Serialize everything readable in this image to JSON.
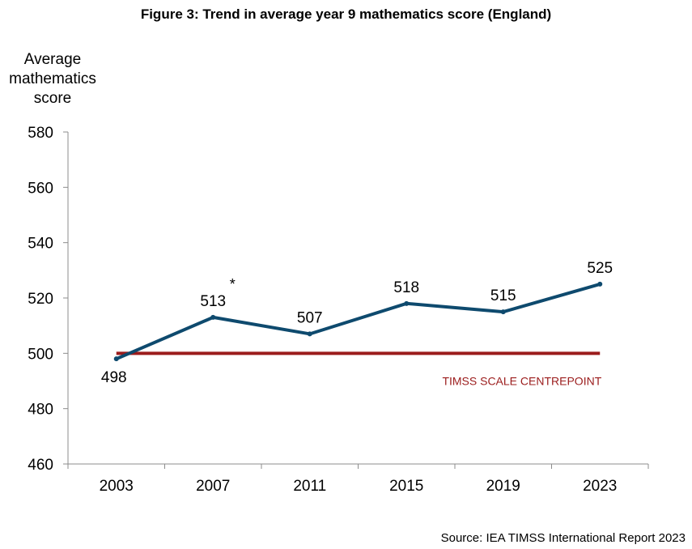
{
  "title": "Figure 3: Trend in average year 9 mathematics score (England)",
  "y_axis_title_lines": [
    "Average",
    "mathematics",
    "score"
  ],
  "source": "Source: IEA TIMSS International Report 2023",
  "colors": {
    "series": "#0e4a6e",
    "reference": "#9b1c1c",
    "axis": "#8c8c8c"
  },
  "chart_data": {
    "type": "line",
    "title": "Figure 3: Trend in average year 9 mathematics score (England)",
    "ylabel": "Average mathematics score",
    "xlabel": "",
    "categories": [
      "2003",
      "2007",
      "2011",
      "2015",
      "2019",
      "2023"
    ],
    "series": [
      {
        "values": [
          498,
          513,
          507,
          518,
          515,
          525
        ],
        "data_labels": [
          "498",
          "513",
          "507",
          "518",
          "515",
          "525"
        ],
        "annotations": [
          "",
          "*",
          "",
          "",
          "",
          ""
        ]
      }
    ],
    "reference_line": {
      "value": 500,
      "label": "TIMSS SCALE CENTREPOINT"
    },
    "ylim": [
      460,
      580
    ],
    "yticks": [
      460,
      480,
      500,
      520,
      540,
      560,
      580
    ],
    "grid": false,
    "legend": "none"
  }
}
